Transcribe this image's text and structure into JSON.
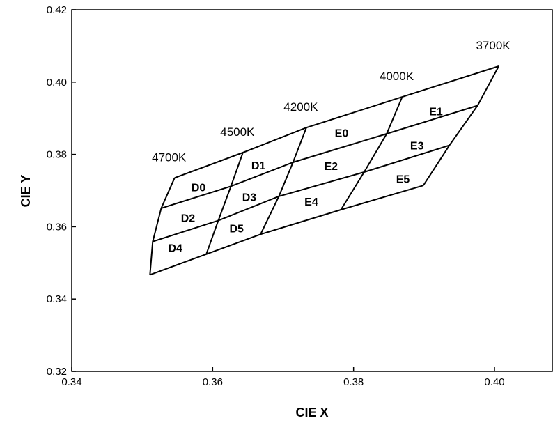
{
  "chart_data": {
    "type": "line",
    "title": "",
    "xlabel": "CIE X",
    "ylabel": "CIE Y",
    "xlim": [
      0.34,
      0.41
    ],
    "ylim": [
      0.32,
      0.42
    ],
    "xticks": [
      "0.34",
      "0.36",
      "0.38",
      "0.40"
    ],
    "xtick_values": [
      0.34,
      0.36,
      0.38,
      0.4
    ],
    "yticks": [
      "0.32",
      "0.34",
      "0.36",
      "0.38",
      "0.40",
      "0.42"
    ],
    "ytick_values": [
      0.32,
      0.34,
      0.36,
      0.38,
      0.4,
      0.42
    ],
    "grid": false,
    "cct_columns": [
      {
        "label": "4700K",
        "points": [
          [
            0.3546,
            0.3735
          ],
          [
            0.3527,
            0.3651
          ],
          [
            0.3515,
            0.3559
          ],
          [
            0.3511,
            0.3467
          ]
        ]
      },
      {
        "label": "4500K",
        "points": [
          [
            0.3643,
            0.3805
          ],
          [
            0.3626,
            0.3712
          ],
          [
            0.3608,
            0.3617
          ],
          [
            0.3591,
            0.3524
          ]
        ]
      },
      {
        "label": "4200K",
        "points": [
          [
            0.3733,
            0.3874
          ],
          [
            0.3714,
            0.3778
          ],
          [
            0.3694,
            0.3684
          ],
          [
            0.3668,
            0.3579
          ]
        ]
      },
      {
        "label": "4000K",
        "points": [
          [
            0.3869,
            0.3959
          ],
          [
            0.3847,
            0.3857
          ],
          [
            0.3815,
            0.3751
          ],
          [
            0.3782,
            0.3647
          ]
        ]
      },
      {
        "label": "3700K",
        "points": [
          [
            0.4006,
            0.4044
          ],
          [
            0.3976,
            0.3935
          ],
          [
            0.3936,
            0.3825
          ],
          [
            0.3899,
            0.3714
          ]
        ]
      }
    ],
    "bins": [
      {
        "name": "D0",
        "x": 0.358,
        "y": 0.371
      },
      {
        "name": "D1",
        "x": 0.3665,
        "y": 0.377
      },
      {
        "name": "D2",
        "x": 0.3565,
        "y": 0.3625
      },
      {
        "name": "D3",
        "x": 0.3652,
        "y": 0.3683
      },
      {
        "name": "D4",
        "x": 0.3547,
        "y": 0.3542
      },
      {
        "name": "D5",
        "x": 0.3634,
        "y": 0.3596
      },
      {
        "name": "E0",
        "x": 0.3783,
        "y": 0.386
      },
      {
        "name": "E1",
        "x": 0.3917,
        "y": 0.392
      },
      {
        "name": "E2",
        "x": 0.3768,
        "y": 0.3768
      },
      {
        "name": "E3",
        "x": 0.389,
        "y": 0.3825
      },
      {
        "name": "E4",
        "x": 0.374,
        "y": 0.367
      },
      {
        "name": "E5",
        "x": 0.387,
        "y": 0.3733
      }
    ]
  }
}
